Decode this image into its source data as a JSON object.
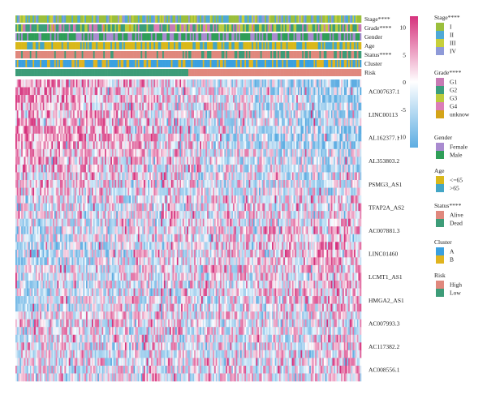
{
  "chart_data": {
    "type": "heatmap",
    "n_samples": 240,
    "annotation_tracks": [
      {
        "key": "stage",
        "label": "Stage****",
        "categories": [
          "I",
          "II",
          "III",
          "IV"
        ],
        "colors": [
          "#9BBF3C",
          "#4EA9D6",
          "#C7CF3A",
          "#8E9AD8"
        ]
      },
      {
        "key": "grade",
        "label": "Grade****",
        "categories": [
          "G1",
          "G2",
          "G3",
          "G4",
          "unknow"
        ],
        "colors": [
          "#C77BB4",
          "#3B9E7C",
          "#BCCB3C",
          "#DC7DB8",
          "#D4A418"
        ]
      },
      {
        "key": "gender",
        "label": "Gender",
        "categories": [
          "Female",
          "Male"
        ],
        "colors": [
          "#A98BD0",
          "#2F9E58"
        ]
      },
      {
        "key": "age",
        "label": "Age",
        "categories": [
          "<=65",
          ">65"
        ],
        "colors": [
          "#D9B81A",
          "#44A6C6"
        ]
      },
      {
        "key": "status",
        "label": "Status****",
        "categories": [
          "Alive",
          "Dead"
        ],
        "colors": [
          "#E0887D",
          "#3D9C78"
        ]
      },
      {
        "key": "cluster",
        "label": "Cluster",
        "categories": [
          "A",
          "B"
        ],
        "colors": [
          "#3AA0E0",
          "#E0B41F"
        ]
      },
      {
        "key": "risk",
        "label": "Risk",
        "categories": [
          "High",
          "Low"
        ],
        "colors": [
          "#E0887D",
          "#3D9C78"
        ]
      }
    ],
    "rows": [
      "AC007637.1",
      "LINC00113",
      "AL162377.1",
      "AL353803.2",
      "PSMG3_AS1",
      "TFAP2A_AS2",
      "AC007881.3",
      "LINC01460",
      "LCMT1_AS1",
      "HMGA2_AS1",
      "AC007993.3",
      "AC117382.2",
      "AC008556.1"
    ],
    "colorbar": {
      "ticks": [
        10,
        5,
        0,
        -5,
        -10
      ],
      "min": -12,
      "max": 12,
      "colors": [
        "#5DADE2",
        "#FFFFFF",
        "#D6337D"
      ]
    }
  }
}
